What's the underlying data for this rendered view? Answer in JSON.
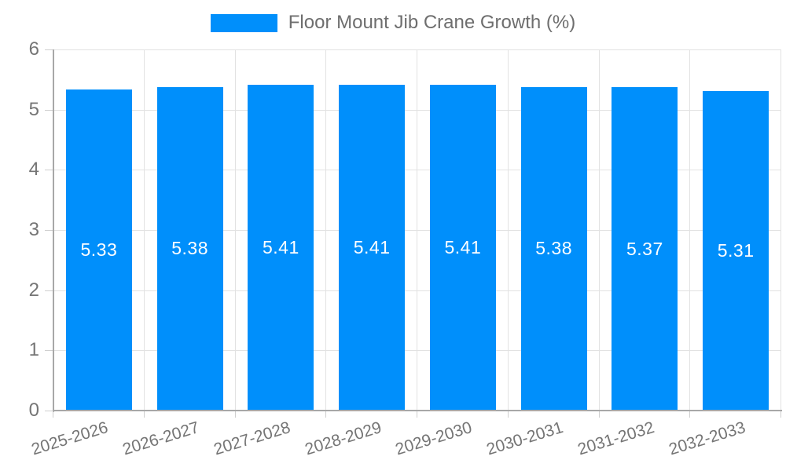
{
  "chart_data": {
    "type": "bar",
    "title": "Floor Mount Jib Crane Growth (%)",
    "legend": {
      "position": "top",
      "label": "Floor Mount Jib Crane Growth (%)"
    },
    "categories": [
      "2025-2026",
      "2026-2027",
      "2027-2028",
      "2028-2029",
      "2029-2030",
      "2030-2031",
      "2031-2032",
      "2032-2033"
    ],
    "series": [
      {
        "name": "Floor Mount Jib Crane Growth (%)",
        "values": [
          5.33,
          5.38,
          5.41,
          5.41,
          5.41,
          5.38,
          5.37,
          5.31
        ]
      }
    ],
    "value_labels": [
      "5.33",
      "5.38",
      "5.41",
      "5.41",
      "5.41",
      "5.38",
      "5.37",
      "5.31"
    ],
    "xlabel": "",
    "ylabel": "",
    "ylim": [
      0,
      6
    ],
    "yticks": [
      "0",
      "1",
      "2",
      "3",
      "4",
      "5",
      "6"
    ],
    "grid": true,
    "colors": {
      "bar": "#008FFB",
      "value_label": "#FFFFFF",
      "grid_line": "#E2E2E2",
      "axis_line": "#A8A8A8",
      "tick_mark": "#CFCFCF",
      "tick_label": "#757575",
      "legend_text": "#6E6E6E",
      "background": "#FFFFFF"
    }
  }
}
